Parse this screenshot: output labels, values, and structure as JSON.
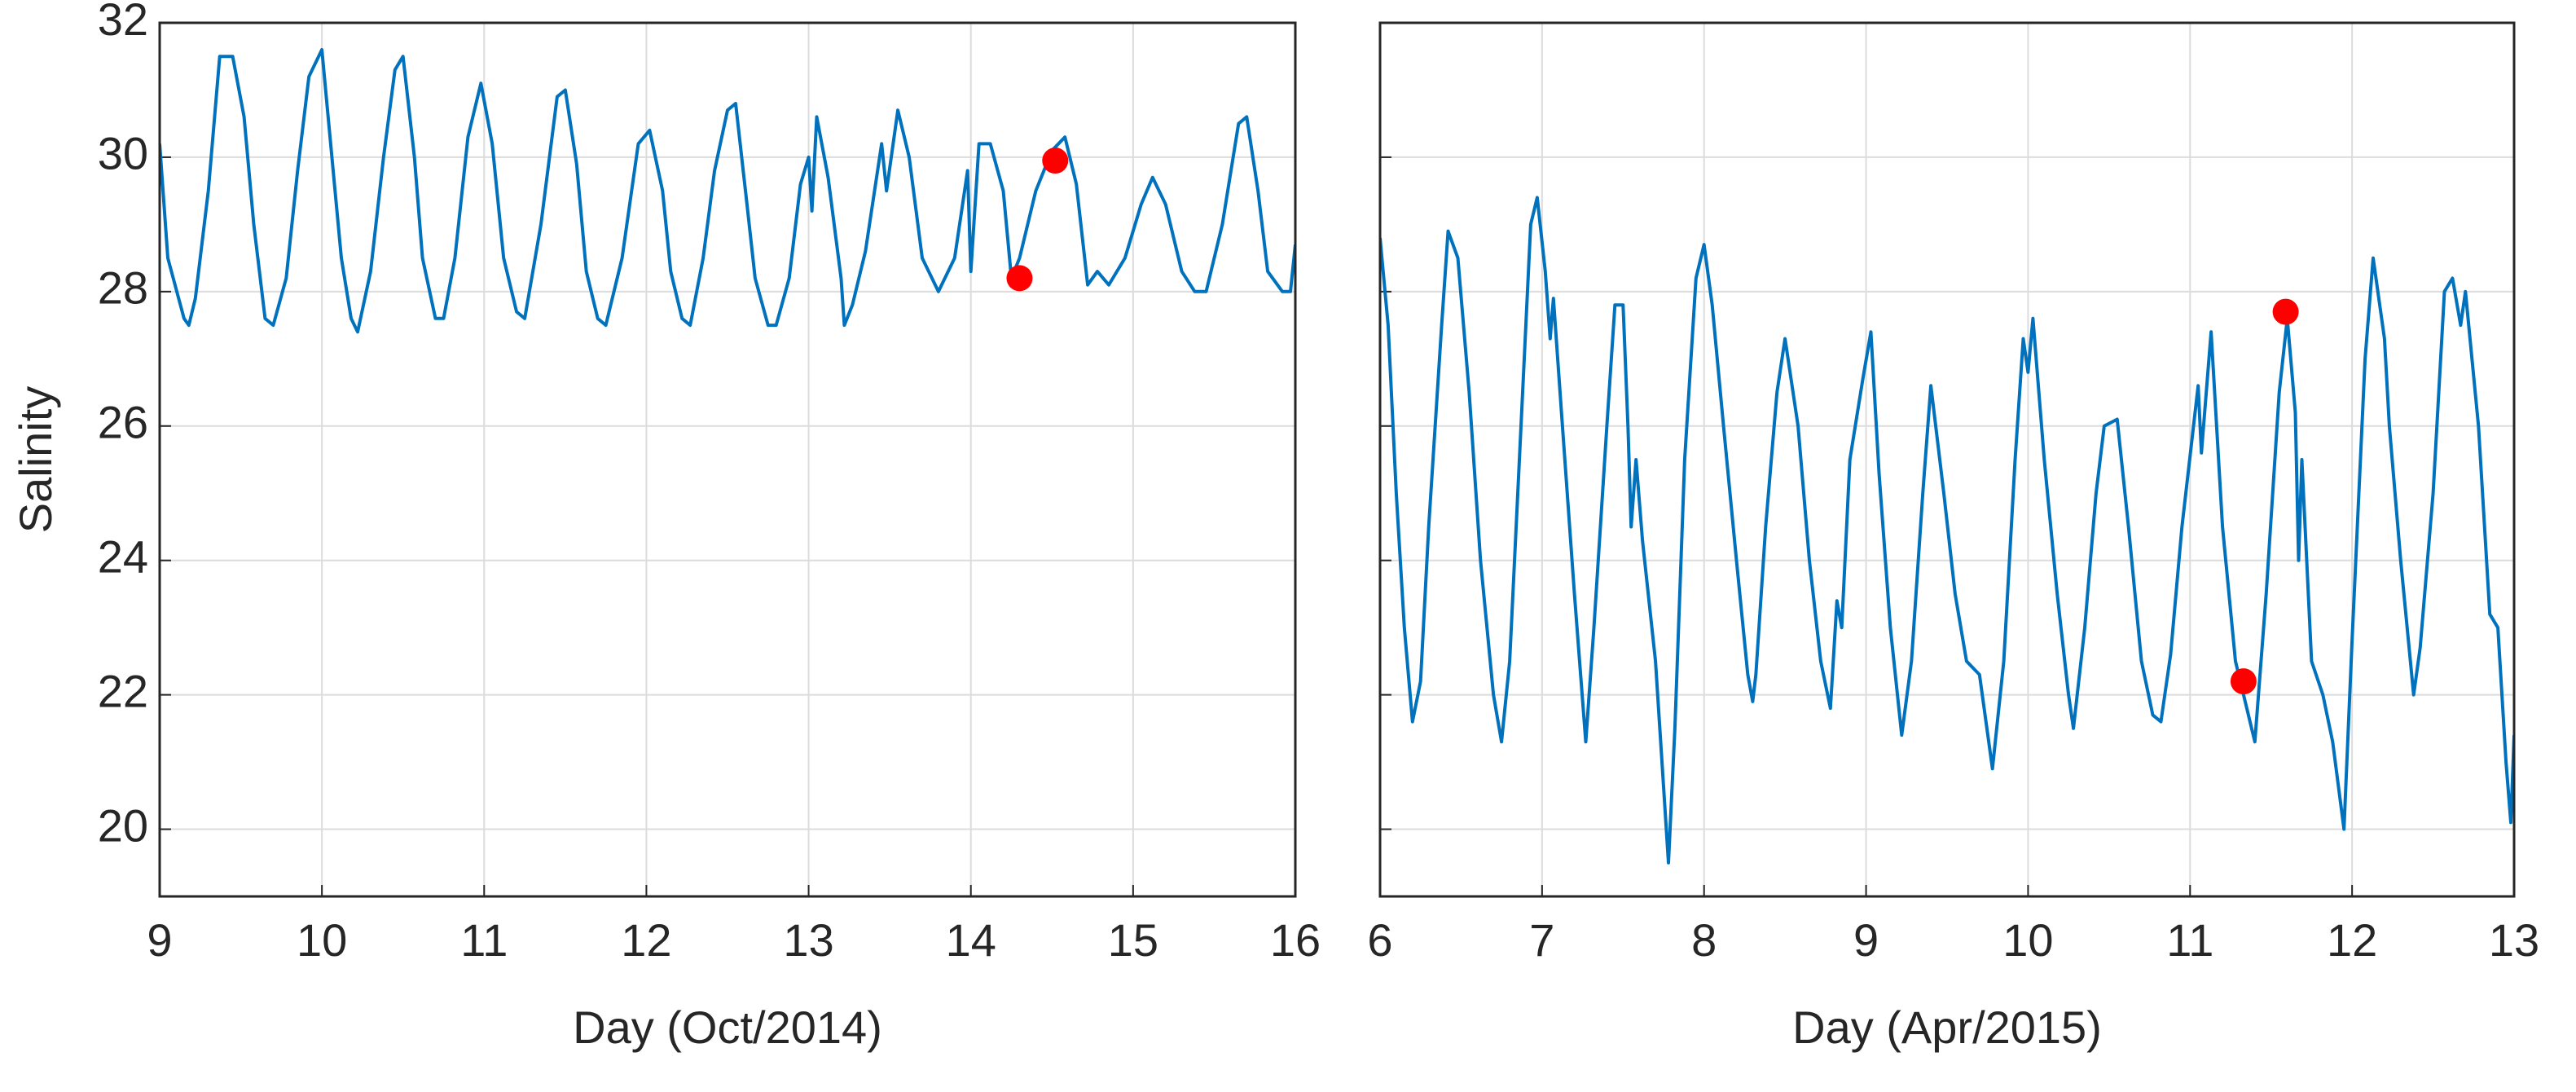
{
  "chart_data": [
    {
      "type": "line",
      "xlabel": "Day (Oct/2014)",
      "ylabel": "Salinity",
      "grid": true,
      "show_yticklabels": true,
      "xlim": [
        9,
        16
      ],
      "xticks": [
        9,
        10,
        11,
        12,
        13,
        14,
        15,
        16
      ],
      "ylim": [
        19,
        32
      ],
      "yticks": [
        20,
        22,
        24,
        26,
        28,
        30,
        32
      ],
      "series": [
        {
          "color": "#0072bd",
          "x": [
            9.0,
            9.05,
            9.15,
            9.18,
            9.22,
            9.3,
            9.37,
            9.45,
            9.52,
            9.58,
            9.65,
            9.7,
            9.78,
            9.85,
            9.92,
            10.0,
            10.05,
            10.12,
            10.18,
            10.22,
            10.3,
            10.38,
            10.45,
            10.5,
            10.57,
            10.62,
            10.7,
            10.75,
            10.82,
            10.9,
            10.98,
            11.05,
            11.12,
            11.2,
            11.25,
            11.35,
            11.45,
            11.5,
            11.57,
            11.63,
            11.7,
            11.75,
            11.85,
            11.95,
            12.02,
            12.1,
            12.15,
            12.22,
            12.27,
            12.35,
            12.42,
            12.5,
            12.55,
            12.62,
            12.67,
            12.75,
            12.8,
            12.88,
            12.95,
            13.0,
            13.02,
            13.05,
            13.12,
            13.2,
            13.22,
            13.27,
            13.35,
            13.45,
            13.48,
            13.55,
            13.62,
            13.7,
            13.8,
            13.9,
            13.98,
            14.0,
            14.05,
            14.12,
            14.2,
            14.25,
            14.3,
            14.4,
            14.5,
            14.58,
            14.65,
            14.72,
            14.78,
            14.85,
            14.95,
            15.05,
            15.12,
            15.2,
            15.3,
            15.38,
            15.45,
            15.55,
            15.65,
            15.7,
            15.77,
            15.83,
            15.92,
            15.97,
            16.0
          ],
          "values": [
            30.2,
            28.5,
            27.6,
            27.5,
            27.9,
            29.5,
            31.5,
            31.5,
            30.6,
            29.0,
            27.6,
            27.5,
            28.2,
            29.8,
            31.2,
            31.6,
            30.3,
            28.5,
            27.6,
            27.4,
            28.3,
            30.0,
            31.3,
            31.5,
            30.0,
            28.5,
            27.6,
            27.6,
            28.5,
            30.3,
            31.1,
            30.2,
            28.5,
            27.7,
            27.6,
            29.0,
            30.9,
            31.0,
            29.9,
            28.3,
            27.6,
            27.5,
            28.5,
            30.2,
            30.4,
            29.5,
            28.3,
            27.6,
            27.5,
            28.5,
            29.8,
            30.7,
            30.8,
            29.3,
            28.2,
            27.5,
            27.5,
            28.2,
            29.6,
            30.0,
            29.2,
            30.6,
            29.7,
            28.2,
            27.5,
            27.8,
            28.6,
            30.2,
            29.5,
            30.7,
            30.0,
            28.5,
            28.0,
            28.5,
            29.8,
            28.3,
            30.2,
            30.2,
            29.5,
            28.2,
            28.5,
            29.5,
            30.1,
            30.3,
            29.6,
            28.1,
            28.3,
            28.1,
            28.5,
            29.3,
            29.7,
            29.3,
            28.3,
            28.0,
            28.0,
            29.0,
            30.5,
            30.6,
            29.5,
            28.3,
            28.0,
            28.0,
            28.7
          ]
        },
        {
          "type": "scatter",
          "color": "#ff0000",
          "x": [
            14.3,
            14.52
          ],
          "values": [
            28.2,
            29.95
          ]
        }
      ]
    },
    {
      "type": "line",
      "xlabel": "Day (Apr/2015)",
      "grid": true,
      "show_yticklabels": false,
      "xlim": [
        6,
        13
      ],
      "xticks": [
        6,
        7,
        8,
        9,
        10,
        11,
        12,
        13
      ],
      "ylim": [
        19,
        32
      ],
      "yticks": [
        20,
        22,
        24,
        26,
        28,
        30,
        32
      ],
      "series": [
        {
          "color": "#0072bd",
          "x": [
            6.0,
            6.05,
            6.1,
            6.15,
            6.2,
            6.25,
            6.3,
            6.38,
            6.42,
            6.48,
            6.55,
            6.62,
            6.7,
            6.75,
            6.8,
            6.88,
            6.93,
            6.97,
            7.02,
            7.05,
            7.07,
            7.12,
            7.2,
            7.27,
            7.32,
            7.4,
            7.45,
            7.5,
            7.53,
            7.55,
            7.58,
            7.62,
            7.7,
            7.78,
            7.82,
            7.88,
            7.95,
            8.0,
            8.05,
            8.12,
            8.2,
            8.27,
            8.3,
            8.32,
            8.38,
            8.45,
            8.5,
            8.58,
            8.65,
            8.72,
            8.78,
            8.82,
            8.85,
            8.9,
            8.98,
            9.03,
            9.08,
            9.15,
            9.22,
            9.28,
            9.35,
            9.4,
            9.48,
            9.55,
            9.62,
            9.7,
            9.78,
            9.85,
            9.92,
            9.97,
            10.0,
            10.03,
            10.1,
            10.18,
            10.25,
            10.28,
            10.35,
            10.42,
            10.47,
            10.55,
            10.62,
            10.7,
            10.77,
            10.82,
            10.88,
            10.95,
            11.05,
            11.07,
            11.13,
            11.2,
            11.28,
            11.35,
            11.4,
            11.47,
            11.55,
            11.6,
            11.65,
            11.67,
            11.69,
            11.75,
            11.82,
            11.88,
            11.95,
            12.0,
            12.08,
            12.13,
            12.2,
            12.23,
            12.3,
            12.38,
            12.42,
            12.5,
            12.57,
            12.62,
            12.67,
            12.7,
            12.78,
            12.85,
            12.9,
            12.95,
            12.98,
            13.0
          ],
          "values": [
            28.8,
            27.5,
            25.0,
            23.0,
            21.6,
            22.2,
            24.5,
            27.5,
            28.9,
            28.5,
            26.5,
            24.0,
            22.0,
            21.3,
            22.5,
            26.5,
            29.0,
            29.4,
            28.3,
            27.3,
            27.9,
            26.2,
            23.5,
            21.3,
            23.0,
            26.0,
            27.8,
            27.8,
            26.0,
            24.5,
            25.5,
            24.3,
            22.5,
            19.5,
            21.5,
            25.5,
            28.2,
            28.7,
            27.8,
            26.0,
            24.0,
            22.3,
            21.9,
            22.3,
            24.5,
            26.5,
            27.3,
            26.0,
            24.0,
            22.5,
            21.8,
            23.4,
            23.0,
            25.5,
            26.7,
            27.4,
            25.3,
            23.0,
            21.4,
            22.5,
            25.0,
            26.6,
            25.0,
            23.5,
            22.5,
            22.3,
            20.9,
            22.5,
            25.5,
            27.3,
            26.8,
            27.6,
            25.5,
            23.5,
            22.0,
            21.5,
            23.0,
            25.0,
            26.0,
            26.1,
            24.5,
            22.5,
            21.7,
            21.6,
            22.6,
            24.5,
            26.6,
            25.6,
            27.4,
            24.5,
            22.5,
            21.8,
            21.3,
            23.5,
            26.5,
            27.6,
            26.2,
            24.0,
            25.5,
            22.5,
            22.0,
            21.3,
            20.0,
            22.8,
            27.0,
            28.5,
            27.3,
            26.0,
            24.0,
            22.0,
            22.7,
            25.0,
            28.0,
            28.2,
            27.5,
            28.0,
            26.0,
            23.2,
            23.0,
            21.0,
            20.1,
            21.4
          ]
        },
        {
          "type": "scatter",
          "color": "#ff0000",
          "x": [
            11.33,
            11.59
          ],
          "values": [
            22.2,
            27.7
          ]
        }
      ]
    }
  ]
}
